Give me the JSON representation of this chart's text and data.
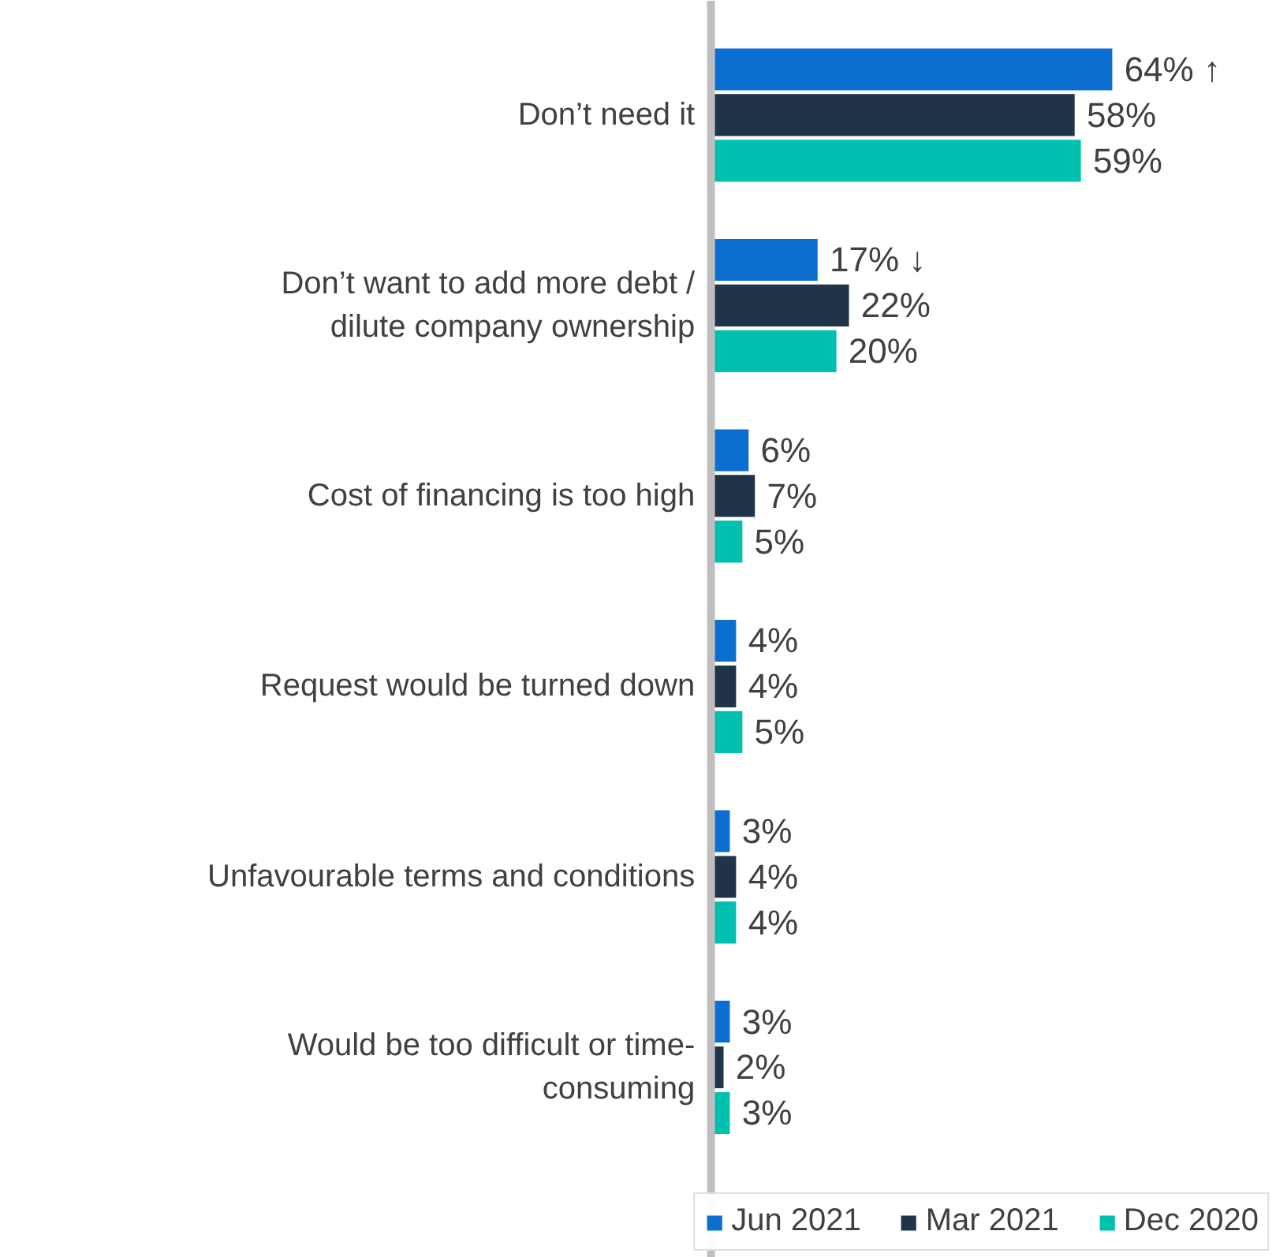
{
  "chart_data": {
    "type": "bar",
    "orientation": "horizontal",
    "legend": "bottom",
    "categories": [
      "Don’t need it",
      "Don’t want to add more debt / dilute company ownership",
      "Cost of financing is too high",
      "Request would be turned down",
      "Unfavourable terms and conditions",
      "Would be too difficult or time-consuming"
    ],
    "series": [
      {
        "name": "Jun 2021",
        "color": "#0b6fd1",
        "values": [
          64,
          17,
          6,
          4,
          3,
          3
        ],
        "value_labels": [
          "64% ↑",
          "17% ↓",
          "6%",
          "4%",
          "3%",
          "3%"
        ]
      },
      {
        "name": "Mar 2021",
        "color": "#1f3349",
        "values": [
          58,
          22,
          7,
          4,
          4,
          2
        ],
        "value_labels": [
          "58%",
          "22%",
          "7%",
          "4%",
          "4%",
          "2%"
        ]
      },
      {
        "name": "Dec 2020",
        "color": "#00c0b0",
        "values": [
          59,
          20,
          5,
          5,
          4,
          3
        ],
        "value_labels": [
          "59%",
          "20%",
          "5%",
          "5%",
          "4%",
          "3%"
        ]
      }
    ]
  }
}
